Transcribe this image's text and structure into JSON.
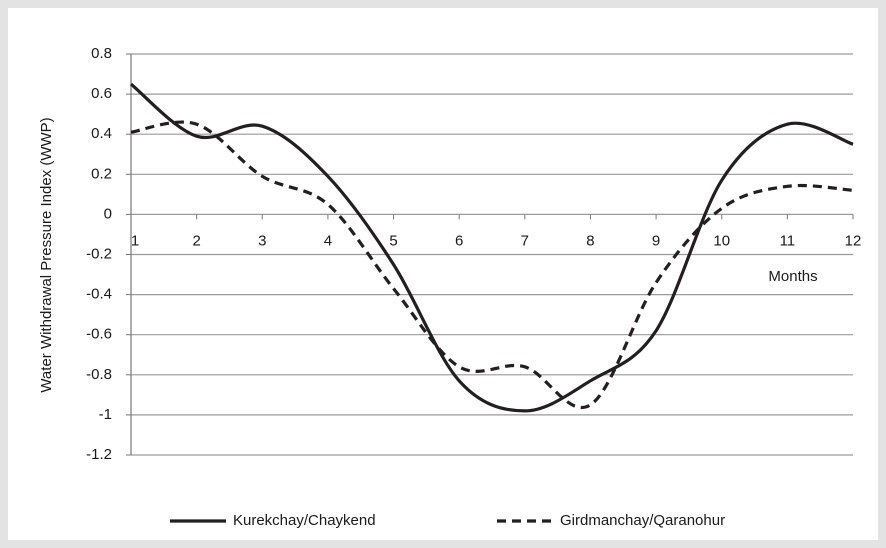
{
  "chart_data": {
    "type": "line",
    "y_label": "Water Withdrawal Pressure Index (WWP)",
    "x_label": "Months",
    "x": [
      1,
      2,
      3,
      4,
      5,
      6,
      7,
      8,
      9,
      10,
      11,
      12
    ],
    "xlim": [
      1,
      12
    ],
    "xticks": [
      1,
      2,
      3,
      4,
      5,
      6,
      7,
      8,
      9,
      10,
      11,
      12
    ],
    "ylim": [
      -1.2,
      0.8
    ],
    "yticks": [
      0.8,
      0.6,
      0.4,
      0.2,
      0,
      -0.2,
      -0.4,
      -0.6,
      -0.8,
      -1,
      -1.2
    ],
    "grid": true,
    "smooth": true,
    "legend": "bottom",
    "series": [
      {
        "name": "Kurekchay/Chaykend",
        "color": "#231f20",
        "style": "solid",
        "values": [
          0.65,
          0.39,
          0.44,
          0.19,
          -0.25,
          -0.83,
          -0.98,
          -0.83,
          -0.58,
          0.17,
          0.45,
          0.35
        ]
      },
      {
        "name": "Girdmanchay/Qaranohur",
        "color": "#231f20",
        "style": "dashed",
        "values": [
          0.41,
          0.45,
          0.19,
          0.05,
          -0.37,
          -0.76,
          -0.76,
          -0.95,
          -0.34,
          0.03,
          0.14,
          0.12
        ]
      }
    ]
  }
}
